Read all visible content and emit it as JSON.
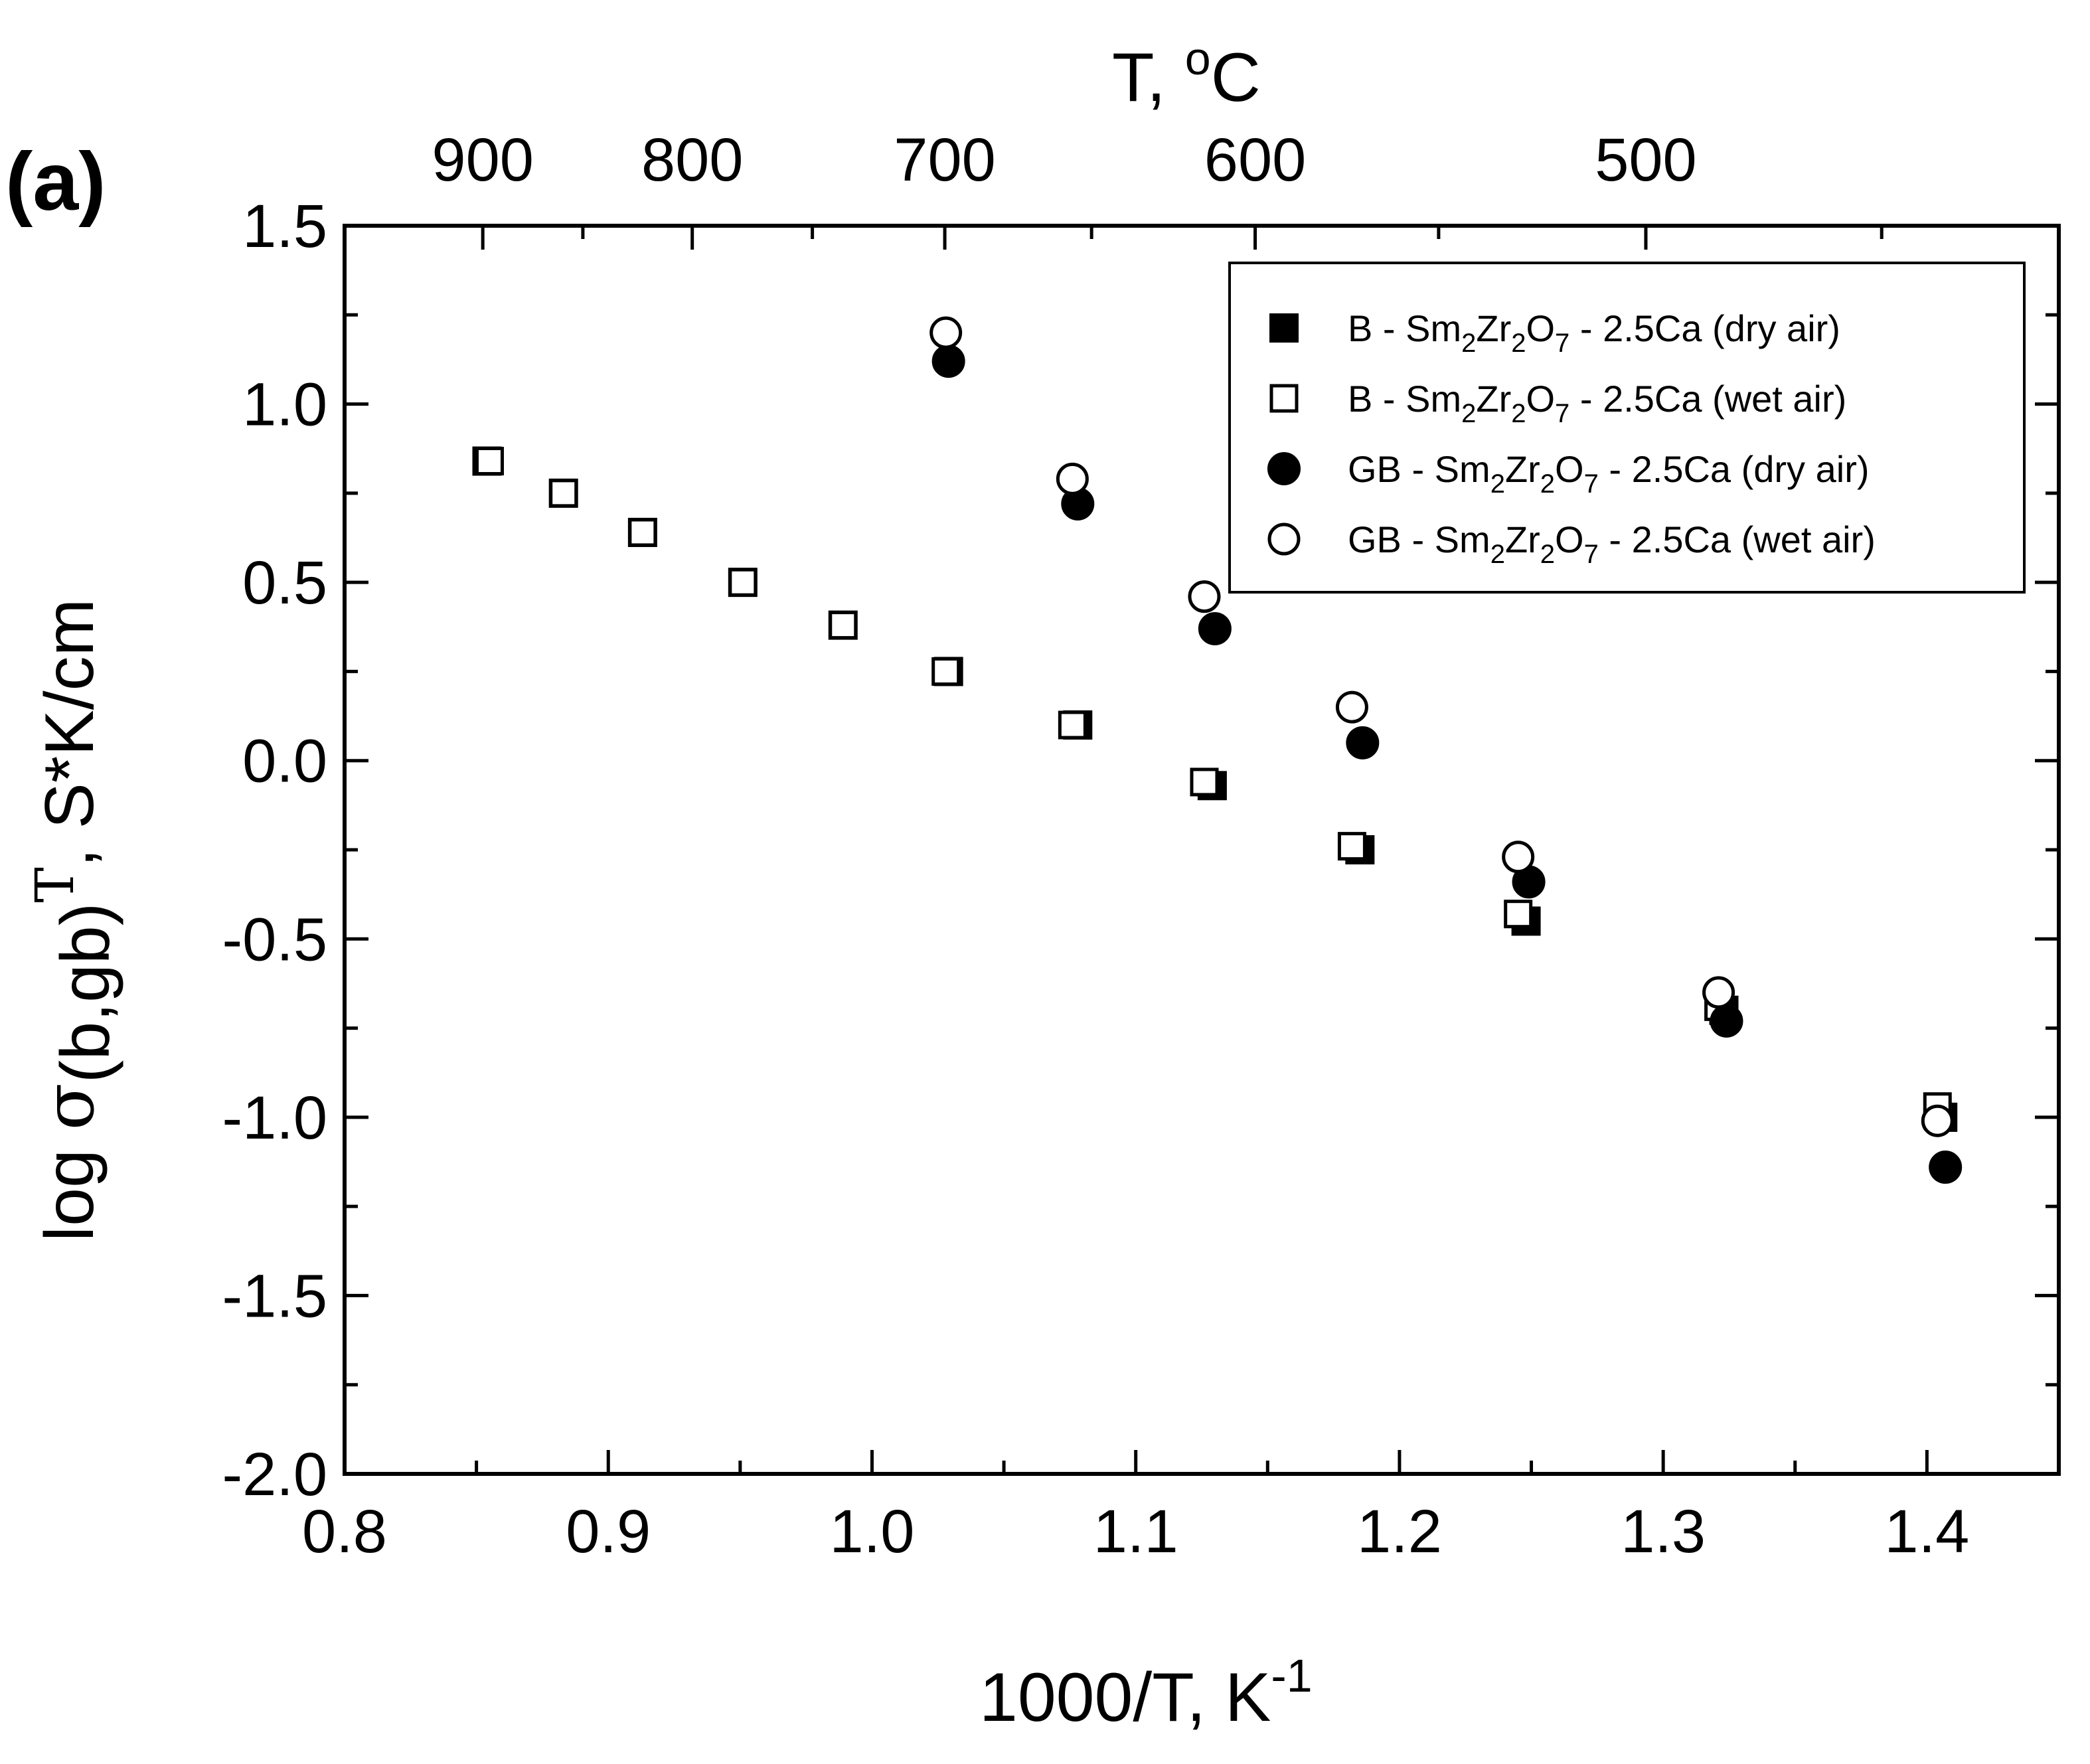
{
  "panel_label": "(a)",
  "chart_data": {
    "type": "scatter",
    "x_title": {
      "main": "1000/T, K",
      "sup": "-1"
    },
    "y_title": {
      "pre": "log ",
      "sigma": "σ",
      "sub": "(b,gb)",
      "t": "T",
      "post": ", S*K/cm"
    },
    "top_title": {
      "main": "T, ",
      "sup": "o",
      "unit": "C"
    },
    "xlim": [
      0.8,
      1.45
    ],
    "ylim": [
      -2.0,
      1.5
    ],
    "x_ticks": [
      {
        "value": 0.8,
        "label": "0.8"
      },
      {
        "value": 0.9,
        "label": "0.9"
      },
      {
        "value": 1.0,
        "label": "1.0"
      },
      {
        "value": 1.1,
        "label": "1.1"
      },
      {
        "value": 1.2,
        "label": "1.2"
      },
      {
        "value": 1.3,
        "label": "1.3"
      },
      {
        "value": 1.4,
        "label": "1.4"
      }
    ],
    "y_ticks": [
      {
        "value": 1.5,
        "label": "1.5"
      },
      {
        "value": 1.0,
        "label": "1.0"
      },
      {
        "value": 0.5,
        "label": "0.5"
      },
      {
        "value": 0.0,
        "label": "0.0"
      },
      {
        "value": -0.5,
        "label": "-0.5"
      },
      {
        "value": -1.0,
        "label": "-1.0"
      },
      {
        "value": -1.5,
        "label": "-1.5"
      },
      {
        "value": -2.0,
        "label": "-2.0"
      }
    ],
    "top_ticks": [
      {
        "celsius": 900,
        "label": "900"
      },
      {
        "celsius": 800,
        "label": "800"
      },
      {
        "celsius": 700,
        "label": "700"
      },
      {
        "celsius": 600,
        "label": "600"
      },
      {
        "celsius": 500,
        "label": "500"
      }
    ],
    "series": [
      {
        "name": "B - Sm2Zr2O7 - 2.5Ca (dry air)",
        "legend": {
          "pre": "B - Sm",
          "s1": "2",
          "m1": "Zr",
          "s2": "2",
          "m2": "O",
          "s3": "7",
          "post": " - 2.5Ca (dry air)"
        },
        "marker": "square",
        "filled": true,
        "x": [
          0.854,
          0.883,
          0.913,
          0.951,
          0.989,
          1.029,
          1.078,
          1.129,
          1.185,
          1.248,
          1.323,
          1.406
        ],
        "y": [
          0.84,
          0.75,
          0.64,
          0.5,
          0.38,
          0.25,
          0.1,
          -0.07,
          -0.25,
          -0.45,
          -0.7,
          -1.0
        ]
      },
      {
        "name": "B - Sm2Zr2O7 - 2.5Ca (wet air)",
        "legend": {
          "pre": "B - Sm",
          "s1": "2",
          "m1": "Zr",
          "s2": "2",
          "m2": "O",
          "s3": "7",
          "post": " - 2.5Ca (wet air)"
        },
        "marker": "square",
        "filled": false,
        "x": [
          0.855,
          0.883,
          0.913,
          0.951,
          0.989,
          1.028,
          1.076,
          1.126,
          1.182,
          1.245,
          1.321,
          1.404
        ],
        "y": [
          0.84,
          0.75,
          0.64,
          0.5,
          0.38,
          0.25,
          0.1,
          -0.06,
          -0.24,
          -0.43,
          -0.69,
          -0.97
        ]
      },
      {
        "name": "GB - Sm2Zr2O7 - 2.5Ca (dry air)",
        "legend": {
          "pre": "GB - Sm",
          "s1": "2",
          "m1": "Zr",
          "s2": "2",
          "m2": "O",
          "s3": "7",
          "post": " - 2.5Ca (dry air)"
        },
        "marker": "circle",
        "filled": true,
        "x": [
          1.029,
          1.078,
          1.13,
          1.186,
          1.249,
          1.324,
          1.407
        ],
        "y": [
          1.12,
          0.72,
          0.37,
          0.05,
          -0.34,
          -0.73,
          -1.14
        ]
      },
      {
        "name": "GB - Sm2Zr2O7 - 2.5Ca (wet air)",
        "legend": {
          "pre": "GB - Sm",
          "s1": "2",
          "m1": "Zr",
          "s2": "2",
          "m2": "O",
          "s3": "7",
          "post": " - 2.5Ca (wet air)"
        },
        "marker": "circle",
        "filled": false,
        "x": [
          1.028,
          1.076,
          1.126,
          1.182,
          1.245,
          1.321,
          1.404
        ],
        "y": [
          1.2,
          0.79,
          0.46,
          0.15,
          -0.27,
          -0.65,
          -1.01
        ]
      }
    ],
    "legend_position": "top-right"
  }
}
